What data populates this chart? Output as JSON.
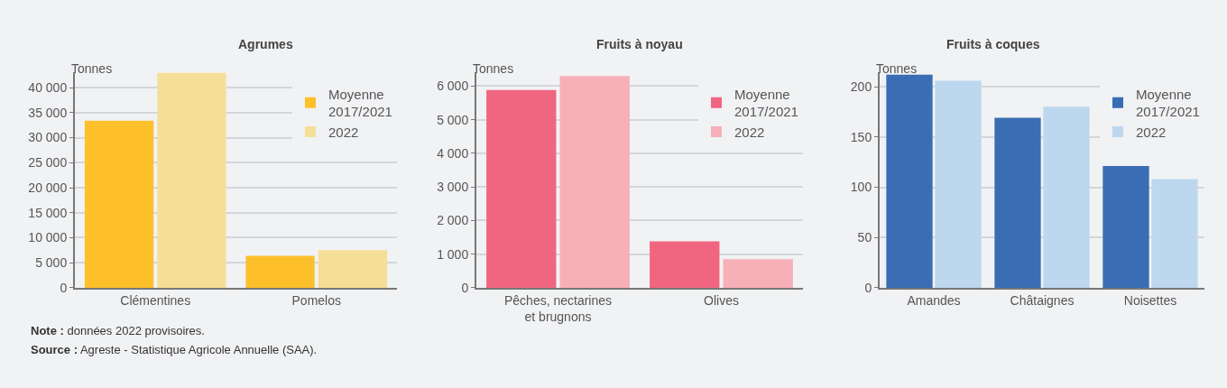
{
  "chart_data": [
    {
      "type": "bar",
      "title": "Agrumes",
      "ylabel": "Tonnes",
      "categories": [
        "Clémentines",
        "Pomelos"
      ],
      "series": [
        {
          "name": "Moyenne 2017/2021",
          "color": "#fdc02a",
          "values": [
            33400,
            6400
          ]
        },
        {
          "name": "2022",
          "color": "#f5df97",
          "values": [
            43000,
            7500
          ]
        }
      ],
      "ylim": [
        0,
        43000
      ],
      "yticks": [
        {
          "value": 0,
          "label": "0"
        },
        {
          "value": 5000,
          "label": "5 000"
        },
        {
          "value": 10000,
          "label": "10 000"
        },
        {
          "value": 15000,
          "label": "15 000"
        },
        {
          "value": 20000,
          "label": "20 000"
        },
        {
          "value": 25000,
          "label": "25 000"
        },
        {
          "value": 30000,
          "label": "30 000"
        },
        {
          "value": 35000,
          "label": "35 000"
        },
        {
          "value": 40000,
          "label": "40 000"
        }
      ],
      "grid": "y",
      "legend": "top right",
      "annotations": [
        "Note : données 2022 provisoires.",
        "Source : Agreste - Statistique Agricole Annuelle (SAA)."
      ]
    },
    {
      "type": "bar",
      "title": "Fruits à noyau",
      "ylabel": "Tonnes",
      "categories": [
        "Pêches, nectarines et brugnons",
        "Olives"
      ],
      "series": [
        {
          "name": "Moyenne 2017/2021",
          "color": "#f06680",
          "values": [
            5880,
            1380
          ]
        },
        {
          "name": "2022",
          "color": "#f7b0b8",
          "values": [
            6300,
            850
          ]
        }
      ],
      "ylim": [
        0,
        6400
      ],
      "yticks": [
        {
          "value": 0,
          "label": "0"
        },
        {
          "value": 1000,
          "label": "1 000"
        },
        {
          "value": 2000,
          "label": "2 000"
        },
        {
          "value": 3000,
          "label": "3 000"
        },
        {
          "value": 4000,
          "label": "4 000"
        },
        {
          "value": 5000,
          "label": "5 000"
        },
        {
          "value": 6000,
          "label": "6 000"
        }
      ],
      "grid": "y",
      "legend": "top right"
    },
    {
      "type": "bar",
      "title": "Fruits à coques",
      "ylabel": "Tonnes",
      "categories": [
        "Amandes",
        "Châtaignes",
        "Noisettes"
      ],
      "series": [
        {
          "name": "Moyenne 2017/2021",
          "color": "#3a6db4",
          "values": [
            212,
            169,
            121
          ]
        },
        {
          "name": "2022",
          "color": "#bdd7ef",
          "values": [
            206,
            180,
            108
          ]
        }
      ],
      "ylim": [
        0,
        214
      ],
      "yticks": [
        0,
        50,
        100,
        150,
        200
      ],
      "grid": "y",
      "legend": "top right"
    }
  ]
}
